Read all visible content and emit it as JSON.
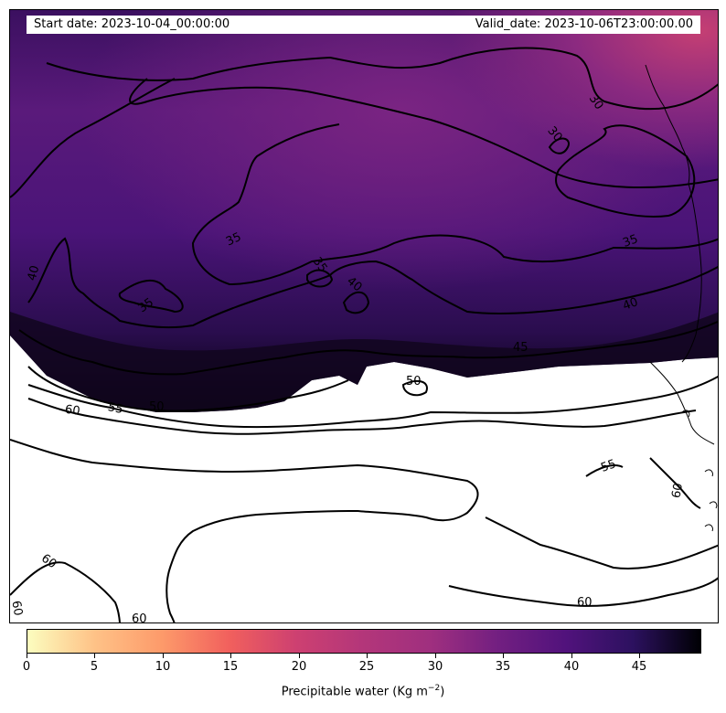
{
  "header": {
    "start_date": "Start date: 2023-10-04_00:00:00",
    "valid_date": "Valid_date: 2023-10-06T23:00:00.00"
  },
  "colorbar": {
    "title_prefix": "Precipitable water (Kg m",
    "title_exponent": "−2",
    "title_suffix": ")",
    "colormap": "magma_r",
    "range": [
      0,
      49.5
    ],
    "ticks": [
      "0",
      "5",
      "10",
      "15",
      "20",
      "25",
      "30",
      "35",
      "40",
      "45"
    ]
  },
  "contours": {
    "labels": [
      {
        "text": "30"
      },
      {
        "text": "30"
      },
      {
        "text": "35"
      },
      {
        "text": "35"
      },
      {
        "text": "35"
      },
      {
        "text": "35"
      },
      {
        "text": "40"
      },
      {
        "text": "40"
      },
      {
        "text": "40"
      },
      {
        "text": "45"
      },
      {
        "text": "50"
      },
      {
        "text": "55"
      },
      {
        "text": "55"
      },
      {
        "text": "60"
      },
      {
        "text": "60"
      },
      {
        "text": "60"
      },
      {
        "text": "60"
      },
      {
        "text": "60"
      },
      {
        "text": "60"
      },
      {
        "text": "50"
      }
    ]
  },
  "colors": {
    "field_low": "#b3367a",
    "field_mid": "#5c1a7a",
    "field_high": "#000004",
    "contour": "#000000"
  }
}
